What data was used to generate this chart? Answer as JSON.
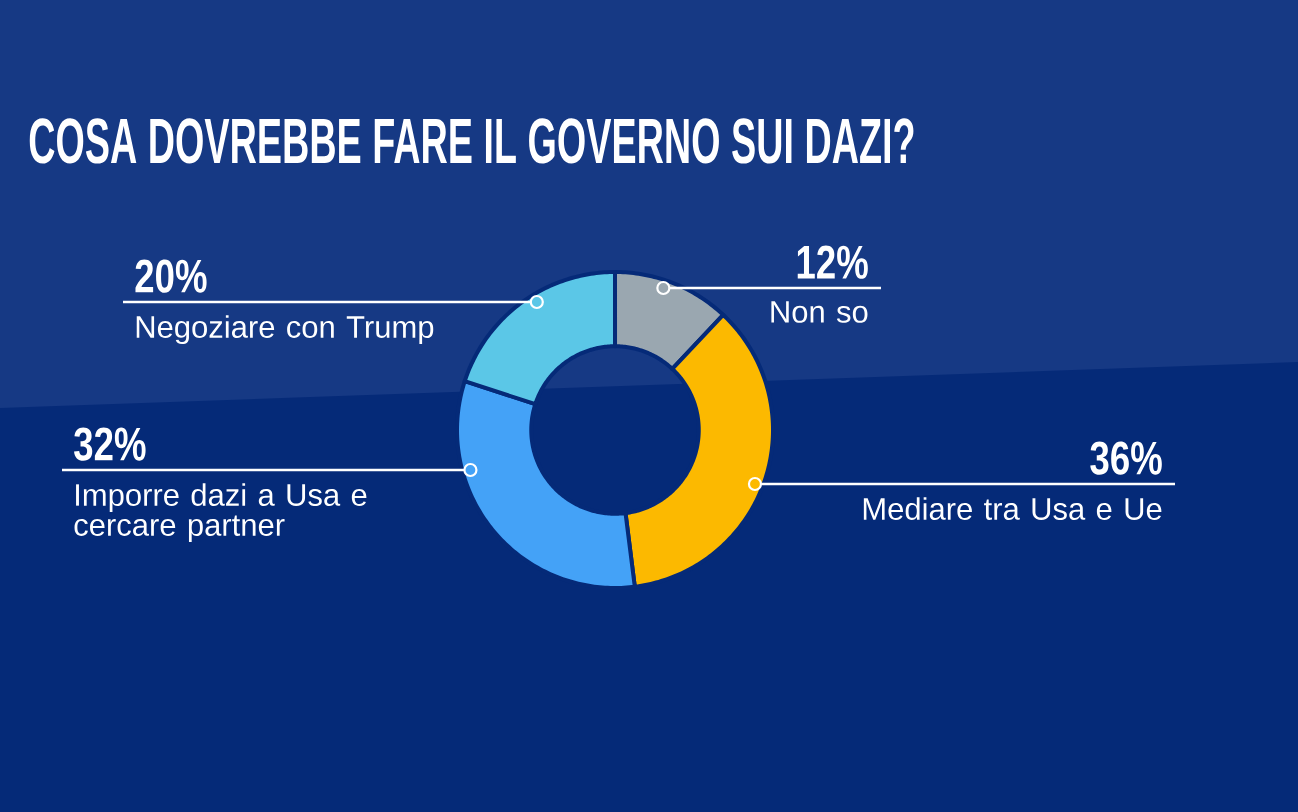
{
  "chart_data": {
    "type": "donut",
    "title": "COSA DOVREBBE FARE IL GOVERNO SUI DAZI?",
    "categories": [
      "Non so",
      "Mediare tra Usa e Ue",
      "Imporre dazi a Usa e cercare partner",
      "Negoziare con Trump"
    ],
    "values": [
      12,
      36,
      32,
      20
    ],
    "colors": [
      "#9aa7b0",
      "#fcb900",
      "#44a2f7",
      "#5bc7e7"
    ],
    "value_labels": [
      "12%",
      "36%",
      "32%",
      "20%"
    ]
  }
}
